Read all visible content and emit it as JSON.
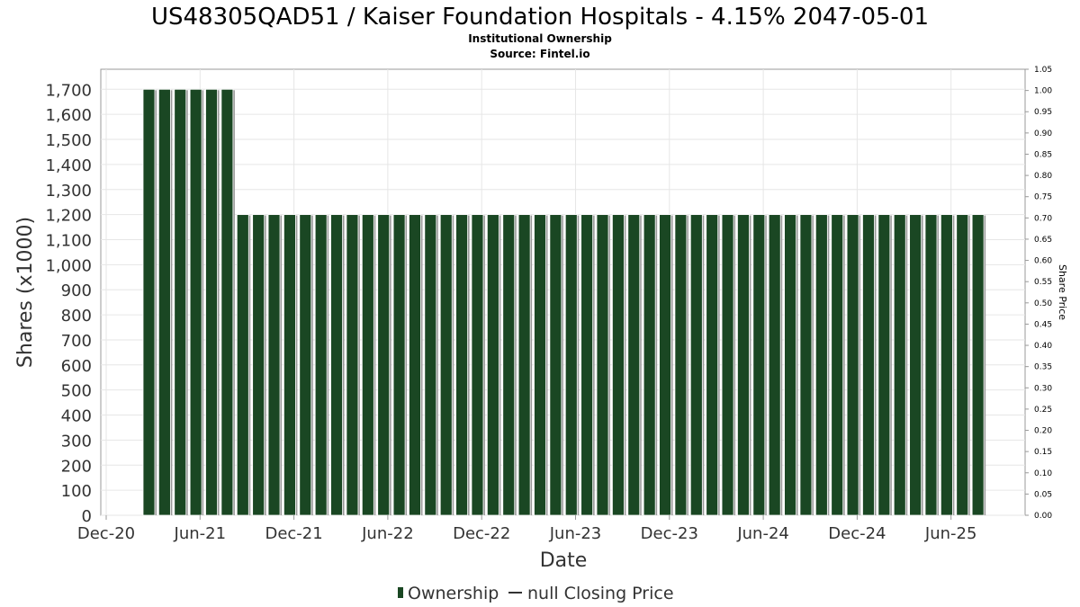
{
  "chart_data": {
    "type": "bar",
    "title": "US48305QAD51 / Kaiser Foundation Hospitals - 4.15% 2047-05-01",
    "subtitle": "Institutional Ownership",
    "source": "Source: Fintel.io",
    "xlabel": "Date",
    "ylabel": "Shares (x1000)",
    "y2label": "Share Price",
    "ylim": [
      0,
      1780
    ],
    "y2lim": [
      0,
      1.05
    ],
    "yticks": [
      "0",
      "100",
      "200",
      "300",
      "400",
      "500",
      "600",
      "700",
      "800",
      "900",
      "1,000",
      "1,100",
      "1,200",
      "1,300",
      "1,400",
      "1,500",
      "1,600",
      "1,700"
    ],
    "y2ticks": [
      "0.00",
      "0.05",
      "0.10",
      "0.15",
      "0.20",
      "0.25",
      "0.30",
      "0.35",
      "0.40",
      "0.45",
      "0.50",
      "0.55",
      "0.60",
      "0.65",
      "0.70",
      "0.75",
      "0.80",
      "0.85",
      "0.90",
      "0.95",
      "1.00",
      "1.05"
    ],
    "xticks": [
      "Dec-20",
      "Jun-21",
      "Dec-21",
      "Jun-22",
      "Dec-22",
      "Jun-23",
      "Dec-23",
      "Jun-24",
      "Dec-24",
      "Jun-25"
    ],
    "grid": true,
    "legend_position": "bottom",
    "series": [
      {
        "name": "Ownership",
        "color": "#1a4723",
        "values": [
          1700,
          1700,
          1700,
          1700,
          1700,
          1700,
          1200,
          1200,
          1200,
          1200,
          1200,
          1200,
          1200,
          1200,
          1200,
          1200,
          1200,
          1200,
          1200,
          1200,
          1200,
          1200,
          1200,
          1200,
          1200,
          1200,
          1200,
          1200,
          1200,
          1200,
          1200,
          1200,
          1200,
          1200,
          1200,
          1200,
          1200,
          1200,
          1200,
          1200,
          1200,
          1200,
          1200,
          1200,
          1200,
          1200,
          1200,
          1200,
          1200,
          1200,
          1200,
          1200,
          1200,
          1200
        ]
      }
    ],
    "legend": [
      {
        "label": "Ownership",
        "marker": "bar",
        "color": "#1a4723"
      },
      {
        "label": "null Closing Price",
        "marker": "line",
        "color": "#333333"
      }
    ]
  }
}
